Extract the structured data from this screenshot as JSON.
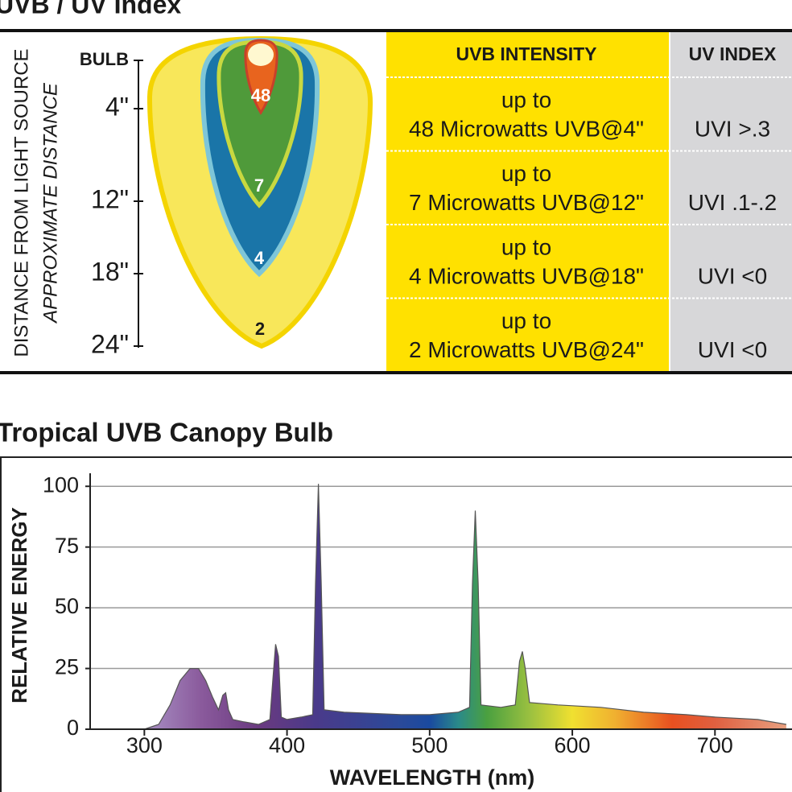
{
  "uv_section": {
    "title": "UVB / UV Index",
    "axis_label": "DISTANCE FROM LIGHT SOURCE",
    "axis_sublabel": "APPROXIMATE DISTANCE",
    "distance_labels": [
      "BULB",
      "4\"",
      "12\"",
      "18\"",
      "24\""
    ],
    "zone_labels": [
      "48",
      "7",
      "4",
      "2"
    ],
    "table": {
      "headers": [
        "UVB INTENSITY",
        "UV INDEX"
      ],
      "rows": [
        [
          [
            "up to",
            "48 Microwatts UVB@4\""
          ],
          "UVI >.3"
        ],
        [
          [
            "up to",
            "7 Microwatts UVB@12\""
          ],
          "UVI .1-.2"
        ],
        [
          [
            "up to",
            "4 Microwatts UVB@18\""
          ],
          "UVI <0"
        ],
        [
          [
            "up to",
            "2 Microwatts UVB@24\""
          ],
          "UVI <0"
        ]
      ]
    }
  },
  "chart_data": {
    "type": "area",
    "title": "Tropical UVB Canopy Bulb",
    "x_label": "WAVELENGTH (nm)",
    "y_label": "RELATIVE ENERGY",
    "x": [
      300,
      310,
      318,
      325,
      332,
      338,
      343,
      348,
      352,
      355,
      357,
      359,
      362,
      370,
      380,
      388,
      390,
      392,
      394,
      396,
      400,
      410,
      418,
      420,
      422,
      424,
      426,
      440,
      460,
      480,
      500,
      520,
      528,
      530,
      532,
      534,
      536,
      550,
      560,
      563,
      565,
      567,
      570,
      590,
      620,
      650,
      680,
      700,
      730,
      750
    ],
    "values": [
      0,
      2,
      10,
      20,
      25,
      25,
      20,
      13,
      8,
      14,
      15,
      8,
      4,
      3,
      2,
      4,
      20,
      35,
      30,
      5,
      4,
      5,
      6,
      60,
      101,
      60,
      8,
      7,
      6.5,
      6,
      6,
      7,
      9,
      60,
      90,
      60,
      10,
      9,
      10,
      28,
      32,
      25,
      11,
      10,
      9,
      7,
      6,
      5,
      4,
      2
    ],
    "xlim": [
      262,
      754
    ],
    "ylim": [
      0,
      112
    ],
    "xticks": [
      300,
      400,
      500,
      600,
      700
    ],
    "yticks": [
      0,
      25,
      50,
      75,
      100
    ],
    "grid": true,
    "color": "#555555",
    "gradient": [
      {
        "x": 300,
        "color": "#a890c4"
      },
      {
        "x": 340,
        "color": "#8a5a9c"
      },
      {
        "x": 380,
        "color": "#6a3a80"
      },
      {
        "x": 420,
        "color": "#4a3a8a"
      },
      {
        "x": 480,
        "color": "#2a4a9a"
      },
      {
        "x": 500,
        "color": "#1a4aa0"
      },
      {
        "x": 520,
        "color": "#2a8a8a"
      },
      {
        "x": 540,
        "color": "#4aa040"
      },
      {
        "x": 570,
        "color": "#9ac040"
      },
      {
        "x": 600,
        "color": "#f0e030"
      },
      {
        "x": 630,
        "color": "#f0b030"
      },
      {
        "x": 670,
        "color": "#e85020"
      },
      {
        "x": 700,
        "color": "#e06040"
      },
      {
        "x": 750,
        "color": "#e8a080"
      }
    ]
  }
}
